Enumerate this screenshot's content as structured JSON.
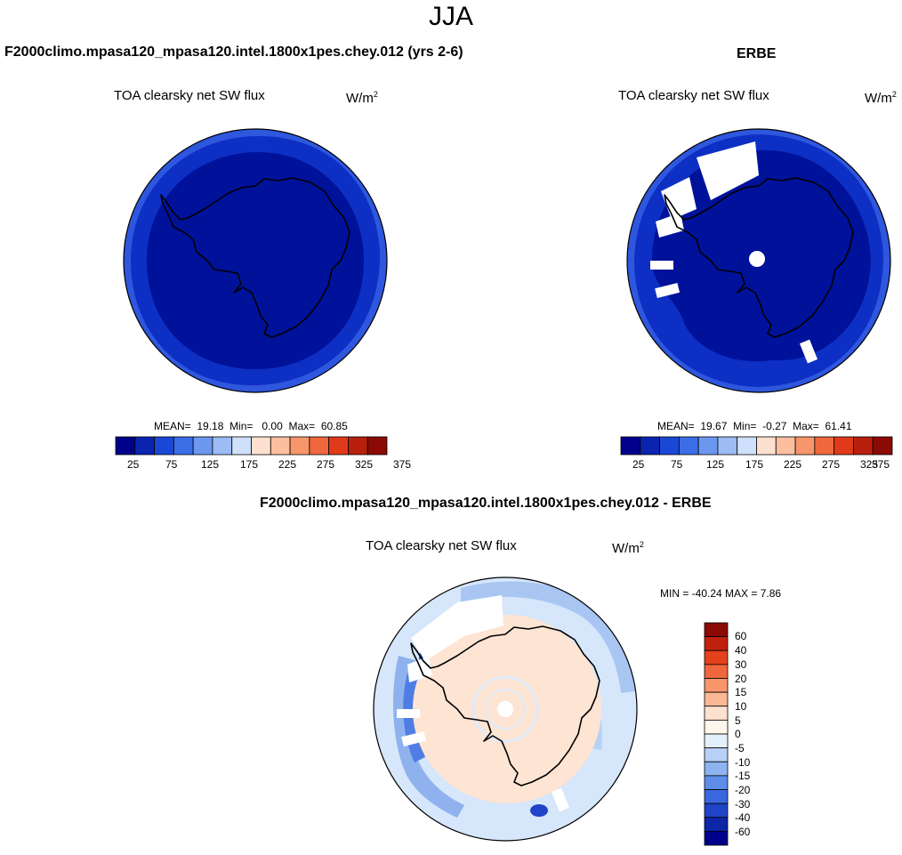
{
  "figure": {
    "title": "JJA"
  },
  "panels": {
    "model": {
      "title": "F2000climo.mpasa120_mpasa120.intel.1800x1pes.chey.012 (yrs 2-6)",
      "variable": "TOA clearsky net SW flux",
      "units_base": "W/m",
      "units_exp": "2",
      "stats": {
        "mean_label": "MEAN=",
        "mean": "19.18",
        "min_label": "Min=",
        "min": "0.00",
        "max_label": "Max=",
        "max": "60.85"
      }
    },
    "obs": {
      "title": "ERBE",
      "variable": "TOA clearsky net SW flux",
      "units_base": "W/m",
      "units_exp": "2",
      "stats": {
        "mean_label": "MEAN=",
        "mean": "19.67",
        "min_label": "Min=",
        "min": "-0.27",
        "max_label": "Max=",
        "max": "61.41"
      }
    },
    "diff": {
      "title": "F2000climo.mpasa120_mpasa120.intel.1800x1pes.chey.012 - ERBE",
      "variable": "TOA clearsky net SW flux",
      "units_base": "W/m",
      "units_exp": "2",
      "stats_text": "MIN = -40.24 MAX =   7.86"
    }
  },
  "colorbars": {
    "abs": {
      "colors": [
        "#00008b",
        "#0a24b0",
        "#1a48d6",
        "#3b6ee6",
        "#6b97ef",
        "#9dbbf5",
        "#cfe1fa",
        "#fde0cf",
        "#fbbf9f",
        "#f7966b",
        "#f0673e",
        "#e03a1a",
        "#b8200d",
        "#8b0a05"
      ],
      "tick_labels": [
        "25",
        "75",
        "125",
        "175",
        "225",
        "275",
        "325",
        "375"
      ]
    },
    "diff": {
      "colors": [
        "#8b0a05",
        "#c0210d",
        "#e3411b",
        "#f0673e",
        "#f7966b",
        "#fbb896",
        "#fde0cf",
        "#fff6ec",
        "#e4effc",
        "#b7d1f6",
        "#8db3f0",
        "#5d8de8",
        "#3a67dd",
        "#1f44c7",
        "#0c26a8",
        "#00008b"
      ],
      "tick_labels": [
        "60",
        "40",
        "30",
        "20",
        "15",
        "10",
        "5",
        "0",
        "-5",
        "-10",
        "-15",
        "-20",
        "-30",
        "-40",
        "-60"
      ]
    }
  },
  "colors": {
    "deep_blue": "#00129a",
    "ring_blue": "#0d2fc4",
    "outer_blue": "#2e57de",
    "missing": "#ffffff",
    "diff_ocean": "#d6e6fb",
    "diff_land": "#fde4d3",
    "coast": "#000000"
  }
}
